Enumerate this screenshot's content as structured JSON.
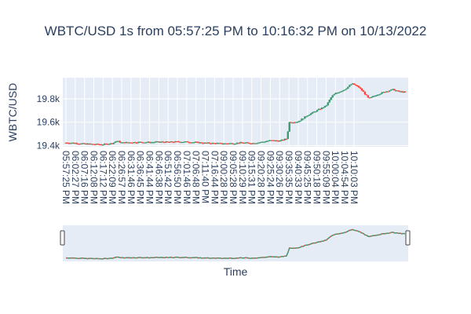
{
  "chart_data": {
    "type": "candlestick",
    "title": "WBTC/USD 1s from 05:57:25 PM to 10:16:32 PM on 10/13/2022",
    "xlabel": "Time",
    "ylabel": "WBTC/USD",
    "y_ticks": [
      "19.4k",
      "19.6k",
      "19.8k"
    ],
    "y_tick_values": [
      19400,
      19600,
      19800
    ],
    "ylim": [
      19390,
      19980
    ],
    "x_ticks": [
      "05:57:25 PM",
      "06:02:27 PM",
      "06:07:16 PM",
      "06:12:08 PM",
      "06:17:12 PM",
      "06:22:09 PM",
      "06:26:57 PM",
      "06:31:46 PM",
      "06:36:45 PM",
      "06:41:44 PM",
      "06:46:38 PM",
      "06:51:42 PM",
      "06:56:50 PM",
      "07:01:46 PM",
      "07:06:48 PM",
      "07:11:40 PM",
      "07:16:44 PM",
      "09:00:28 PM",
      "09:05:28 PM",
      "09:10:29 PM",
      "09:15:31 PM",
      "09:20:28 PM",
      "09:25:24 PM",
      "09:30:26 PM",
      "09:35:35 PM",
      "09:40:33 PM",
      "09:45:25 PM",
      "09:50:18 PM",
      "09:55:09 PM",
      "10:00:04 PM",
      "10:04:54 PM",
      "10:10:03 PM"
    ],
    "increasing_color": "#3d9970",
    "decreasing_color": "#ff4136",
    "grid": true,
    "rangeslider": true,
    "price_path": [
      [
        0,
        19425
      ],
      [
        1,
        19422
      ],
      [
        2,
        19415
      ],
      [
        3,
        19412
      ],
      [
        4,
        19410
      ],
      [
        5,
        19420
      ],
      [
        5.5,
        19440
      ],
      [
        6,
        19425
      ],
      [
        7,
        19428
      ],
      [
        8,
        19430
      ],
      [
        9,
        19428
      ],
      [
        10,
        19432
      ],
      [
        11,
        19430
      ],
      [
        12,
        19434
      ],
      [
        13,
        19432
      ],
      [
        14,
        19428
      ],
      [
        15,
        19422
      ],
      [
        16,
        19420
      ],
      [
        17,
        19418
      ],
      [
        18,
        19420
      ],
      [
        19,
        19425
      ],
      [
        20,
        19420
      ],
      [
        21,
        19430
      ],
      [
        22,
        19445
      ],
      [
        23,
        19440
      ],
      [
        23.8,
        19460
      ],
      [
        24,
        19600
      ],
      [
        25,
        19605
      ],
      [
        26,
        19660
      ],
      [
        27,
        19700
      ],
      [
        28,
        19740
      ],
      [
        28.6,
        19820
      ],
      [
        29,
        19845
      ],
      [
        30,
        19880
      ],
      [
        30.8,
        19930
      ],
      [
        31.5,
        19900
      ],
      [
        32,
        19860
      ],
      [
        32.6,
        19800
      ],
      [
        33.3,
        19830
      ],
      [
        34.3,
        19860
      ],
      [
        35.2,
        19880
      ],
      [
        35.7,
        19865
      ],
      [
        36.5,
        19855
      ]
    ]
  }
}
